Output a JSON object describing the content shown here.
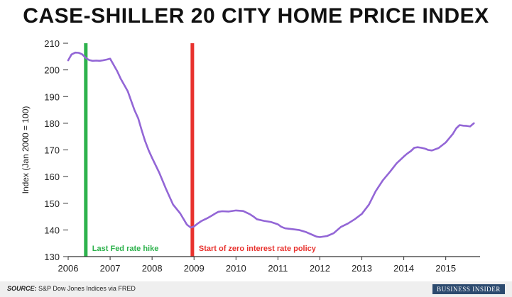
{
  "title": "CASE-SHILLER 20 CITY HOME PRICE INDEX",
  "source_label": "SOURCE:",
  "source_text": "S&P Dow Jones Indices via FRED",
  "logo_text": "BUSINESS INSIDER",
  "colors": {
    "line": "#9366d6",
    "green_marker": "#2db24c",
    "red_marker": "#e8322e",
    "axis": "#333333"
  },
  "chart_data": {
    "type": "line",
    "title": "CASE-SHILLER 20 CITY HOME PRICE INDEX",
    "xlabel": "",
    "ylabel": "Index (Jan 2000 = 100)",
    "xlim": [
      2006.0,
      2015.75
    ],
    "ylim": [
      130,
      210
    ],
    "x_ticks": [
      2006,
      2007,
      2008,
      2009,
      2010,
      2011,
      2012,
      2013,
      2014,
      2015
    ],
    "y_ticks": [
      130,
      140,
      150,
      160,
      170,
      180,
      190,
      200,
      210
    ],
    "grid": false,
    "series": [
      {
        "x": [
          2006.0,
          2006.08,
          2006.17,
          2006.25,
          2006.33,
          2006.42,
          2006.5,
          2006.58,
          2006.67,
          2006.75,
          2006.83,
          2006.92,
          2007.0,
          2007.08,
          2007.17,
          2007.25,
          2007.33,
          2007.42,
          2007.5,
          2007.58,
          2007.67,
          2007.75,
          2007.83,
          2007.92,
          2008.0,
          2008.17,
          2008.33,
          2008.5,
          2008.67,
          2008.83,
          2008.92,
          2009.0,
          2009.08,
          2009.17,
          2009.25,
          2009.33,
          2009.42,
          2009.5,
          2009.58,
          2009.67,
          2009.83,
          2010.0,
          2010.17,
          2010.33,
          2010.42,
          2010.5,
          2010.67,
          2010.83,
          2011.0,
          2011.08,
          2011.17,
          2011.33,
          2011.5,
          2011.67,
          2011.83,
          2011.92,
          2012.0,
          2012.17,
          2012.33,
          2012.5,
          2012.67,
          2012.83,
          2013.0,
          2013.17,
          2013.33,
          2013.5,
          2013.67,
          2013.83,
          2014.0,
          2014.08,
          2014.17,
          2014.25,
          2014.33,
          2014.42,
          2014.5,
          2014.58,
          2014.67,
          2014.83,
          2015.0,
          2015.08,
          2015.17,
          2015.25,
          2015.33,
          2015.42,
          2015.5,
          2015.58,
          2015.67
        ],
        "y": [
          203.6,
          205.8,
          206.5,
          206.4,
          205.9,
          204.5,
          203.7,
          203.4,
          203.5,
          203.4,
          203.6,
          203.9,
          204.2,
          202.0,
          199.5,
          196.8,
          194.5,
          192.0,
          188.5,
          185.0,
          181.8,
          177.5,
          173.5,
          169.8,
          167.0,
          161.5,
          155.5,
          149.5,
          146.2,
          142.0,
          140.9,
          141.3,
          142.3,
          143.3,
          143.9,
          144.5,
          145.3,
          146.1,
          146.8,
          147.0,
          146.9,
          147.3,
          147.1,
          145.9,
          145.0,
          144.0,
          143.4,
          143.0,
          142.1,
          141.2,
          140.6,
          140.3,
          140.0,
          139.2,
          138.1,
          137.5,
          137.3,
          137.7,
          138.8,
          141.1,
          142.4,
          144.0,
          146.0,
          149.5,
          154.5,
          158.6,
          161.8,
          165.0,
          167.5,
          168.6,
          169.6,
          170.8,
          171.0,
          170.8,
          170.5,
          170.0,
          169.8,
          170.7,
          172.8,
          174.3,
          176.0,
          178.1,
          179.3,
          179.1,
          179.0,
          178.8,
          180.0
        ]
      }
    ],
    "annotations": [
      {
        "x": 2006.42,
        "label": "Last Fed rate hike",
        "color": "#2db24c"
      },
      {
        "x": 2008.96,
        "label": "Start of zero interest rate policy",
        "color": "#e8322e"
      }
    ]
  }
}
